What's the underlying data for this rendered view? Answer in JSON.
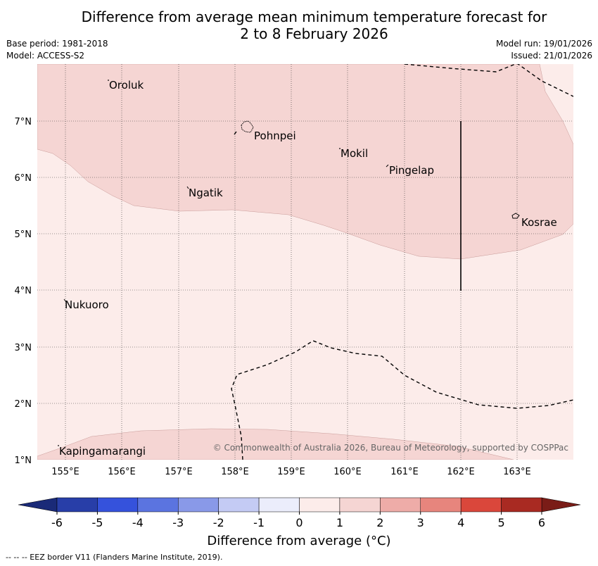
{
  "title_line1": "Difference from average mean minimum temperature forecast for",
  "title_line2": "2 to 8 February 2026",
  "base_period": "Base period: 1981-2018",
  "model": "Model: ACCESS-S2",
  "model_run": "Model run: 19/01/2026",
  "issued": "Issued: 21/01/2026",
  "longitudes": [
    "155°E",
    "156°E",
    "157°E",
    "158°E",
    "159°E",
    "160°E",
    "161°E",
    "162°E",
    "163°E"
  ],
  "latitudes": [
    "7°N",
    "6°N",
    "5°N",
    "4°N",
    "3°N",
    "2°N",
    "1°N"
  ],
  "places": {
    "oroluk": "Oroluk",
    "pohnpei": "Pohnpei",
    "mokil": "Mokil",
    "pingelap": "Pingelap",
    "ngatik": "Ngatik",
    "kosrae": "Kosrae",
    "nukuoro": "Nukuoro",
    "kapingamarangi": "Kapingamarangi"
  },
  "copyright": "© Commonwealth of Australia 2026, Bureau of Meteorology, supported by COSPPac",
  "colorbar": {
    "ticks": [
      "-6",
      "-5",
      "-4",
      "-3",
      "-2",
      "-1",
      "0",
      "1",
      "2",
      "3",
      "4",
      "5",
      "6"
    ],
    "colors": [
      "#283ea8",
      "#3552dc",
      "#5b74e0",
      "#8999e8",
      "#c4cbf4",
      "#ebedfb",
      "#fcecea",
      "#f5d5d3",
      "#eeaca8",
      "#e7857d",
      "#da473b",
      "#a92a22"
    ],
    "low_color": "#1a2a78",
    "high_color": "#7a1c17",
    "label": "Difference from average (°C)"
  },
  "colors": {
    "band_0_1": "#fcecea",
    "band_1_2": "#f5d5d3"
  },
  "footer": "--  --  -- EEZ border V11 (Flanders Marine Institute, 2019)."
}
